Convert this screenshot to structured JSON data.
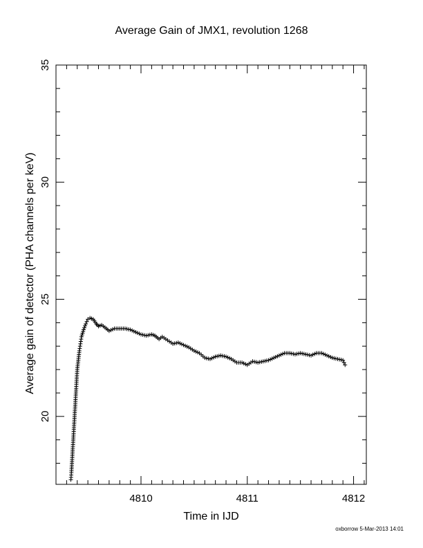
{
  "chart_data": {
    "type": "scatter",
    "title": "Average Gain of JMX1, revolution 1268",
    "xlabel": "Time in IJD",
    "ylabel": "Average gain of detector (PHA channels per keV)",
    "xlim": [
      4809.2,
      4812.12
    ],
    "ylim": [
      17.1,
      35
    ],
    "xticks": [
      4810,
      4811,
      4812
    ],
    "yticks": [
      20,
      25,
      30,
      35
    ],
    "marker": "+",
    "grid": false,
    "series": [
      {
        "points": [
          [
            4809.34,
            17.3
          ],
          [
            4809.345,
            17.6
          ],
          [
            4809.35,
            18.0
          ],
          [
            4809.355,
            18.4
          ],
          [
            4809.36,
            18.8
          ],
          [
            4809.365,
            19.2
          ],
          [
            4809.37,
            19.6
          ],
          [
            4809.375,
            20.0
          ],
          [
            4809.38,
            20.4
          ],
          [
            4809.385,
            20.8
          ],
          [
            4809.39,
            21.2
          ],
          [
            4809.395,
            21.6
          ],
          [
            4809.4,
            22.0
          ],
          [
            4809.41,
            22.4
          ],
          [
            4809.42,
            22.8
          ],
          [
            4809.43,
            23.1
          ],
          [
            4809.44,
            23.4
          ],
          [
            4809.46,
            23.7
          ],
          [
            4809.48,
            23.95
          ],
          [
            4809.5,
            24.15
          ],
          [
            4809.52,
            24.2
          ],
          [
            4809.55,
            24.15
          ],
          [
            4809.58,
            23.95
          ],
          [
            4809.6,
            23.85
          ],
          [
            4809.63,
            23.9
          ],
          [
            4809.66,
            23.8
          ],
          [
            4809.7,
            23.65
          ],
          [
            4809.75,
            23.75
          ],
          [
            4809.8,
            23.75
          ],
          [
            4809.85,
            23.75
          ],
          [
            4809.9,
            23.7
          ],
          [
            4809.95,
            23.6
          ],
          [
            4810.0,
            23.5
          ],
          [
            4810.05,
            23.45
          ],
          [
            4810.1,
            23.5
          ],
          [
            4810.13,
            23.45
          ],
          [
            4810.17,
            23.3
          ],
          [
            4810.2,
            23.4
          ],
          [
            4810.25,
            23.25
          ],
          [
            4810.3,
            23.1
          ],
          [
            4810.35,
            23.15
          ],
          [
            4810.4,
            23.05
          ],
          [
            4810.45,
            22.95
          ],
          [
            4810.5,
            22.8
          ],
          [
            4810.55,
            22.7
          ],
          [
            4810.6,
            22.5
          ],
          [
            4810.65,
            22.45
          ],
          [
            4810.7,
            22.55
          ],
          [
            4810.75,
            22.6
          ],
          [
            4810.8,
            22.55
          ],
          [
            4810.85,
            22.45
          ],
          [
            4810.9,
            22.3
          ],
          [
            4810.95,
            22.3
          ],
          [
            4811.0,
            22.2
          ],
          [
            4811.05,
            22.35
          ],
          [
            4811.1,
            22.3
          ],
          [
            4811.15,
            22.35
          ],
          [
            4811.2,
            22.4
          ],
          [
            4811.25,
            22.5
          ],
          [
            4811.3,
            22.6
          ],
          [
            4811.35,
            22.7
          ],
          [
            4811.4,
            22.7
          ],
          [
            4811.45,
            22.65
          ],
          [
            4811.5,
            22.7
          ],
          [
            4811.55,
            22.65
          ],
          [
            4811.6,
            22.6
          ],
          [
            4811.65,
            22.7
          ],
          [
            4811.7,
            22.7
          ],
          [
            4811.75,
            22.6
          ],
          [
            4811.8,
            22.5
          ],
          [
            4811.85,
            22.45
          ],
          [
            4811.9,
            22.4
          ],
          [
            4811.92,
            22.2
          ]
        ]
      }
    ]
  },
  "footer": {
    "credit": "oxborrow  5-Mar-2013 14:01"
  }
}
